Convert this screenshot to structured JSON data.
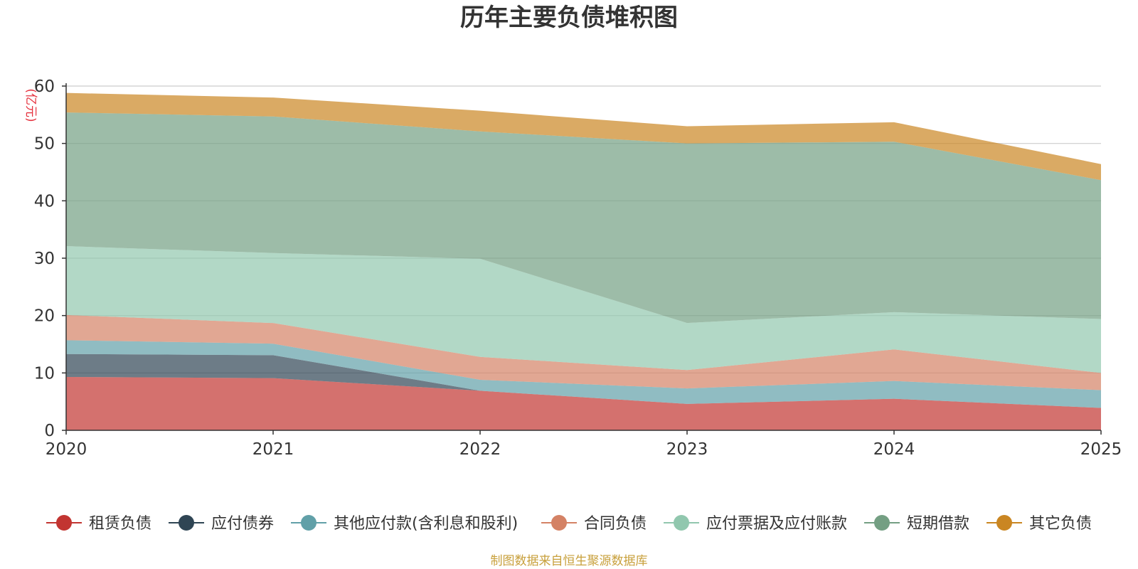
{
  "chart_data": {
    "type": "area",
    "stacked": true,
    "title": "历年主要负债堆积图",
    "ylabel": "(亿元)",
    "xlabel": "",
    "x": [
      "2020",
      "2021",
      "2022",
      "2023",
      "2024",
      "2025"
    ],
    "ylim": [
      0,
      60
    ],
    "yticks": [
      "0",
      "10",
      "20",
      "30",
      "40",
      "50",
      "60"
    ],
    "grid": true,
    "legend_position": "bottom",
    "series": [
      {
        "name": "租赁负债",
        "color": "#c23531",
        "values": [
          9.3,
          9.1,
          6.9,
          4.6,
          5.5,
          3.9
        ]
      },
      {
        "name": "应付债券",
        "color": "#2f4554",
        "values": [
          4.0,
          4.0,
          0.0,
          0.0,
          0.0,
          0.0
        ]
      },
      {
        "name": "其他应付款(含利息和股利)",
        "color": "#61a0a8",
        "values": [
          2.4,
          2.0,
          1.9,
          2.7,
          3.1,
          3.1
        ]
      },
      {
        "name": "合同负债",
        "color": "#d48265",
        "values": [
          4.4,
          3.6,
          4.0,
          3.2,
          5.5,
          3.0
        ]
      },
      {
        "name": "应付票据及应付账款",
        "color": "#91c7ae",
        "values": [
          12.0,
          12.2,
          17.1,
          8.2,
          6.5,
          9.4
        ]
      },
      {
        "name": "短期借款",
        "color": "#749f83",
        "values": [
          23.3,
          23.8,
          22.2,
          31.3,
          29.7,
          24.2
        ]
      },
      {
        "name": "其它负债",
        "color": "#ca8622",
        "values": [
          3.4,
          3.3,
          3.6,
          3.0,
          3.4,
          2.8
        ]
      }
    ]
  },
  "source": "制图数据来自恒生聚源数据库"
}
